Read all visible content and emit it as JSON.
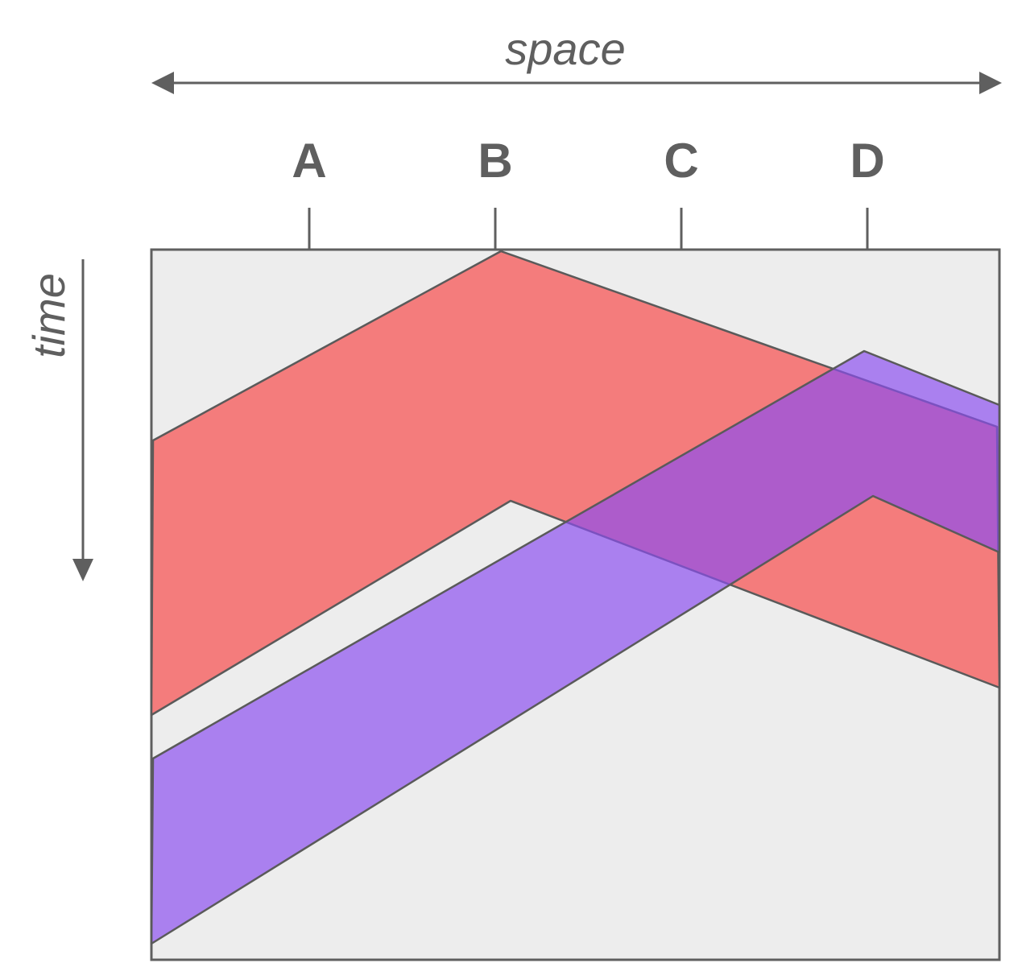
{
  "axes": {
    "horizontal_title": "space",
    "vertical_title": "time"
  },
  "points": [
    {
      "key": "a",
      "label": "A"
    },
    {
      "key": "b",
      "label": "B"
    },
    {
      "key": "c",
      "label": "C"
    },
    {
      "key": "d",
      "label": "D"
    }
  ],
  "bands": {
    "red": {
      "color": "#f47c7c"
    },
    "purple": {
      "color": "#8a4cf0"
    }
  },
  "colors": {
    "ink": "#5f5f5f",
    "background": "#ededed"
  }
}
